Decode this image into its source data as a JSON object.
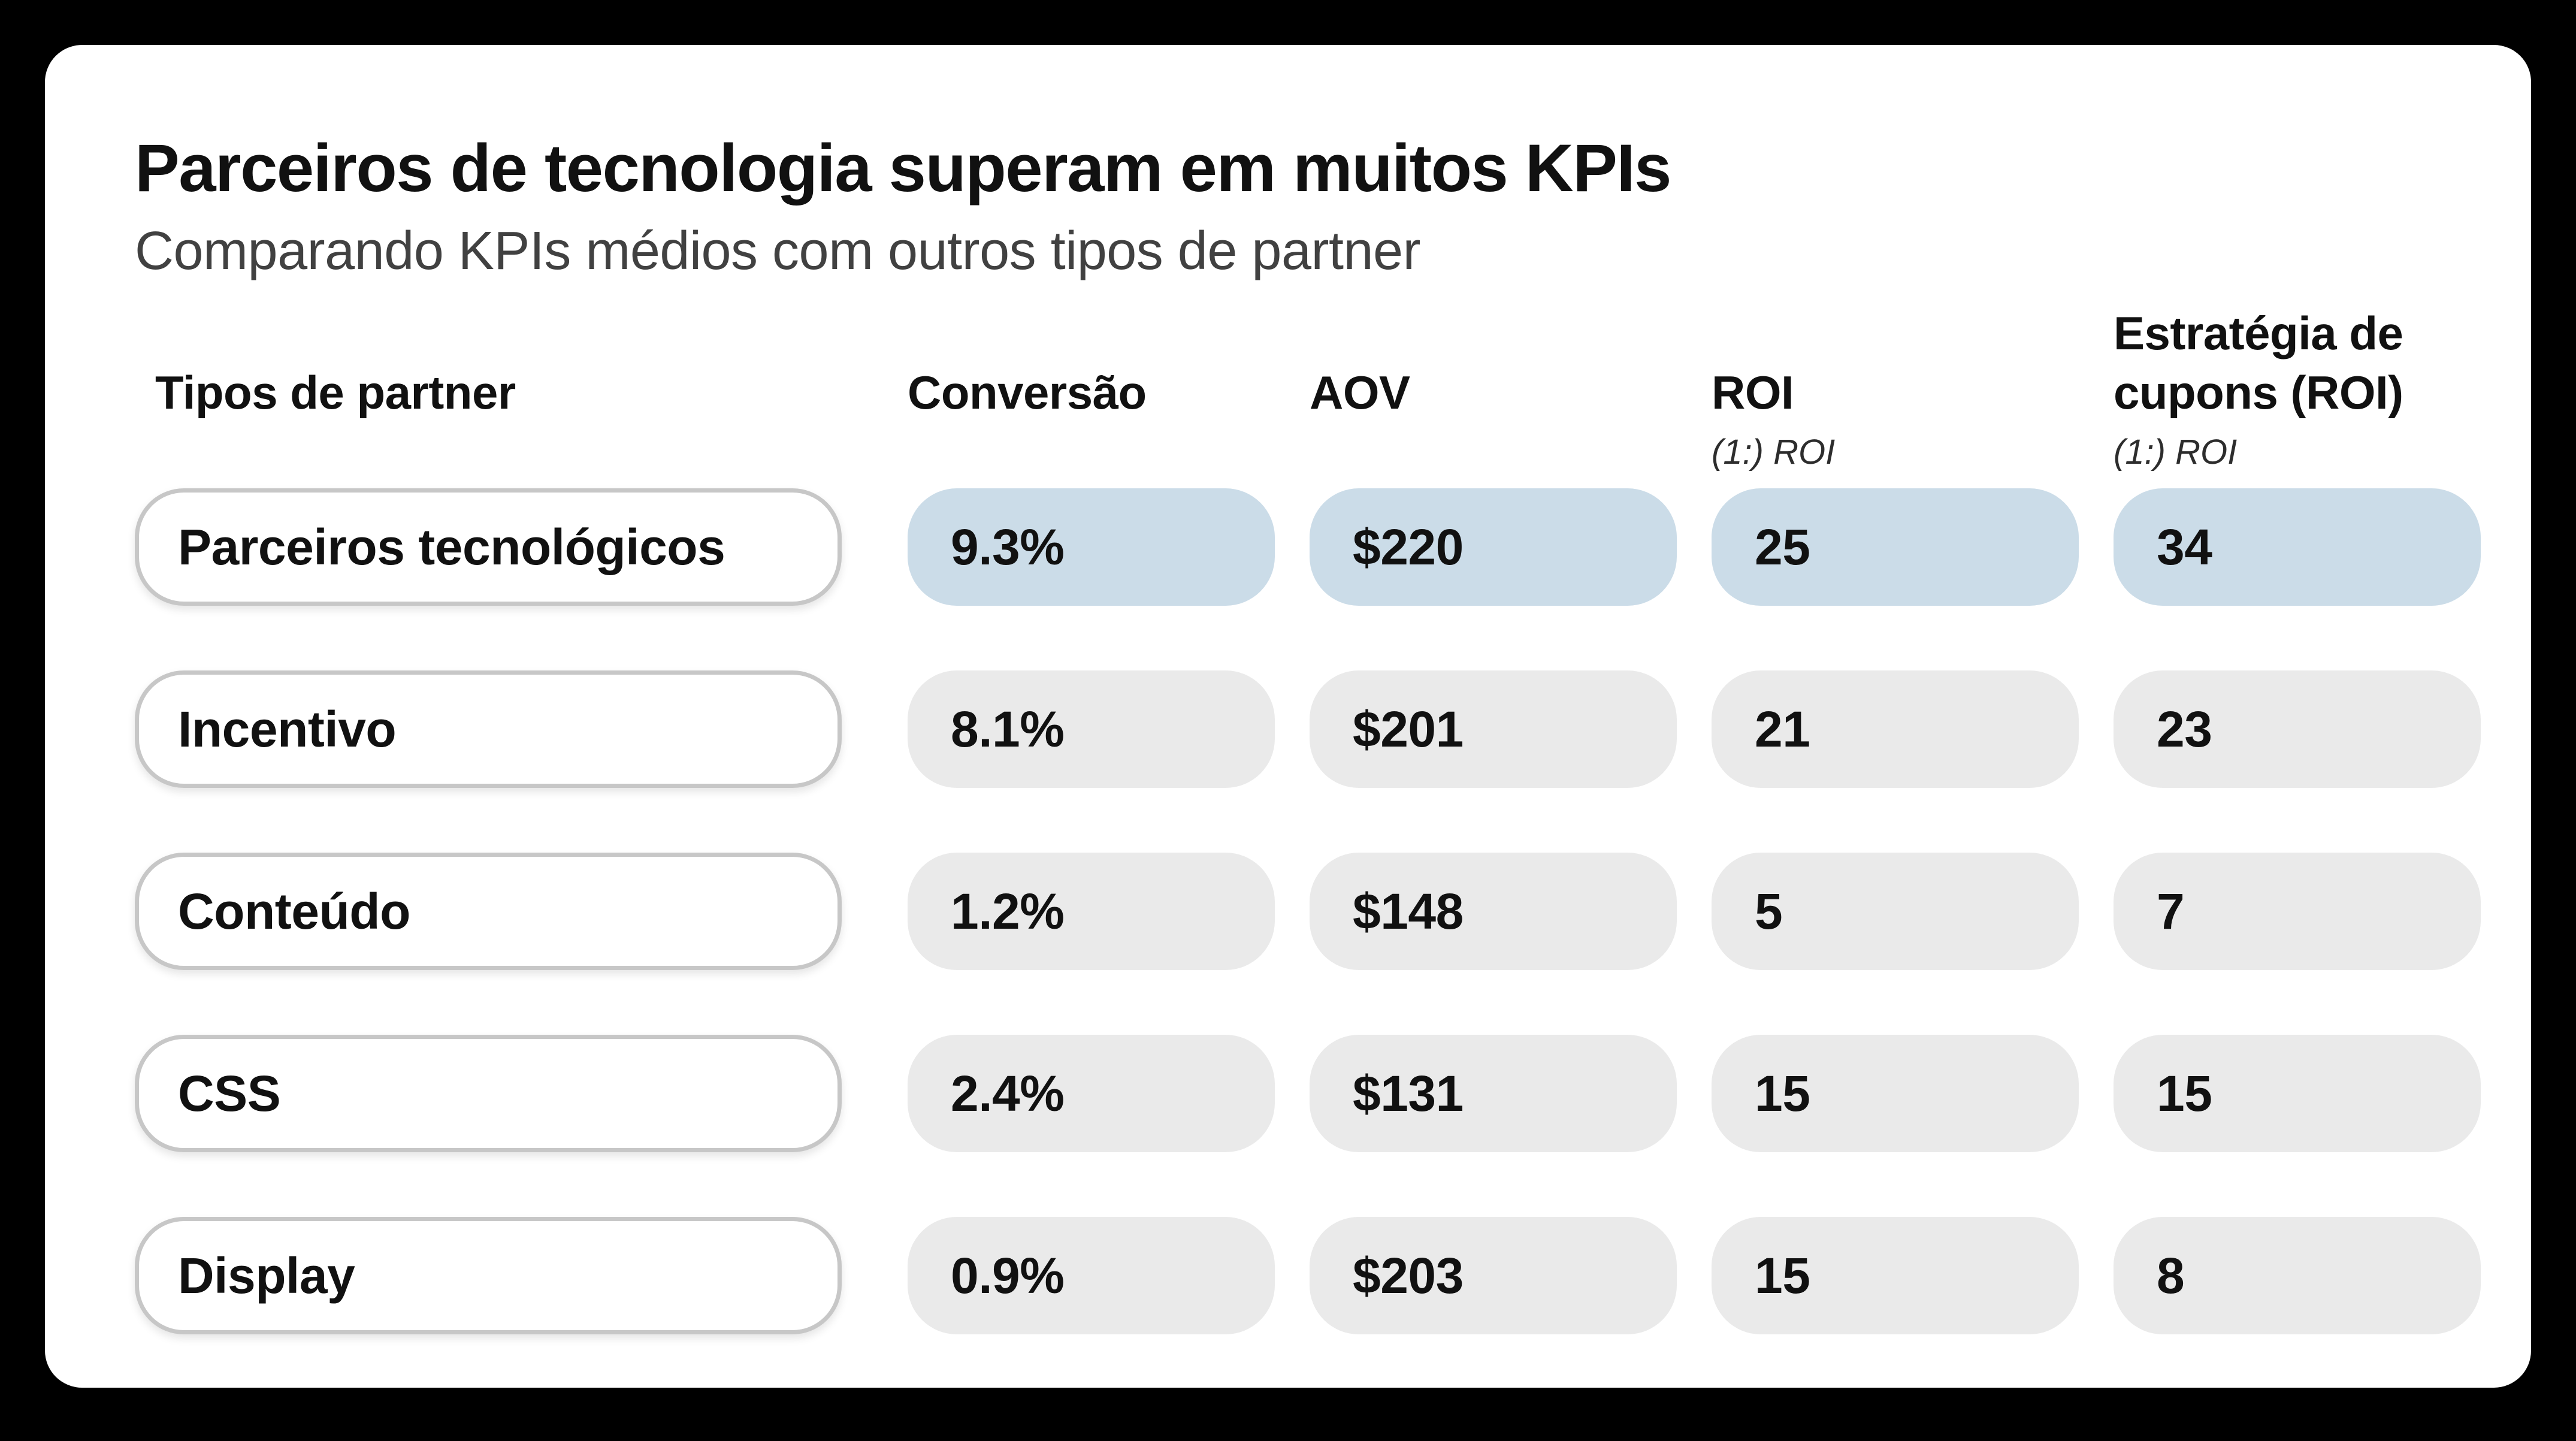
{
  "header": {
    "title": "Parceiros de tecnologia superam em muitos KPIs",
    "subtitle": "Comparando KPIs médios com outros tipos de partner"
  },
  "table": {
    "columns": [
      {
        "label": "Tipos de partner",
        "sub": ""
      },
      {
        "label": "Conversão",
        "sub": ""
      },
      {
        "label": "AOV",
        "sub": ""
      },
      {
        "label": "ROI",
        "sub": "(1:) ROI"
      },
      {
        "label": "Estratégia de cupons (ROI)",
        "sub": "(1:) ROI"
      }
    ],
    "rows": [
      {
        "label": "Parceiros tecnológicos",
        "values": [
          "9.3%",
          "$220",
          "25",
          "34"
        ],
        "highlighted": true
      },
      {
        "label": "Incentivo",
        "values": [
          "8.1%",
          "$201",
          "21",
          "23"
        ],
        "highlighted": false
      },
      {
        "label": "Conteúdo",
        "values": [
          "1.2%",
          "$148",
          "5",
          "7"
        ],
        "highlighted": false
      },
      {
        "label": "CSS",
        "values": [
          "2.4%",
          "$131",
          "15",
          "15"
        ],
        "highlighted": false
      },
      {
        "label": "Display",
        "values": [
          "0.9%",
          "$203",
          "15",
          "8"
        ],
        "highlighted": false
      }
    ]
  },
  "chart_data": {
    "type": "table",
    "title": "Parceiros de tecnologia superam em muitos KPIs",
    "subtitle": "Comparando KPIs médios com outros tipos de partner",
    "row_header": "Tipos de partner",
    "columns": [
      {
        "label": "Conversão"
      },
      {
        "label": "AOV"
      },
      {
        "label": "ROI",
        "unit": "(1:) ROI"
      },
      {
        "label": "Estratégia de cupons (ROI)",
        "unit": "(1:) ROI"
      }
    ],
    "rows": [
      {
        "partner_type": "Parceiros tecnológicos",
        "conversao": "9.3%",
        "aov": "$220",
        "roi": 25,
        "estrategia_cupons_roi": 34,
        "highlighted": true
      },
      {
        "partner_type": "Incentivo",
        "conversao": "8.1%",
        "aov": "$201",
        "roi": 21,
        "estrategia_cupons_roi": 23,
        "highlighted": false
      },
      {
        "partner_type": "Conteúdo",
        "conversao": "1.2%",
        "aov": "$148",
        "roi": 5,
        "estrategia_cupons_roi": 7,
        "highlighted": false
      },
      {
        "partner_type": "CSS",
        "conversao": "2.4%",
        "aov": "$131",
        "roi": 15,
        "estrategia_cupons_roi": 15,
        "highlighted": false
      },
      {
        "partner_type": "Display",
        "conversao": "0.9%",
        "aov": "$203",
        "roi": 15,
        "estrategia_cupons_roi": 8,
        "highlighted": false
      }
    ],
    "legend_position": "none",
    "grid": false
  },
  "colors": {
    "page_bg": "#000000",
    "card_bg": "#ffffff",
    "highlight_pill": "#cbdce8",
    "default_pill": "#eaeaea",
    "label_pill_border": "#c7c7c7",
    "text": "#111111",
    "subtitle_text": "#414141",
    "subheader_text": "#2d2d2d"
  }
}
